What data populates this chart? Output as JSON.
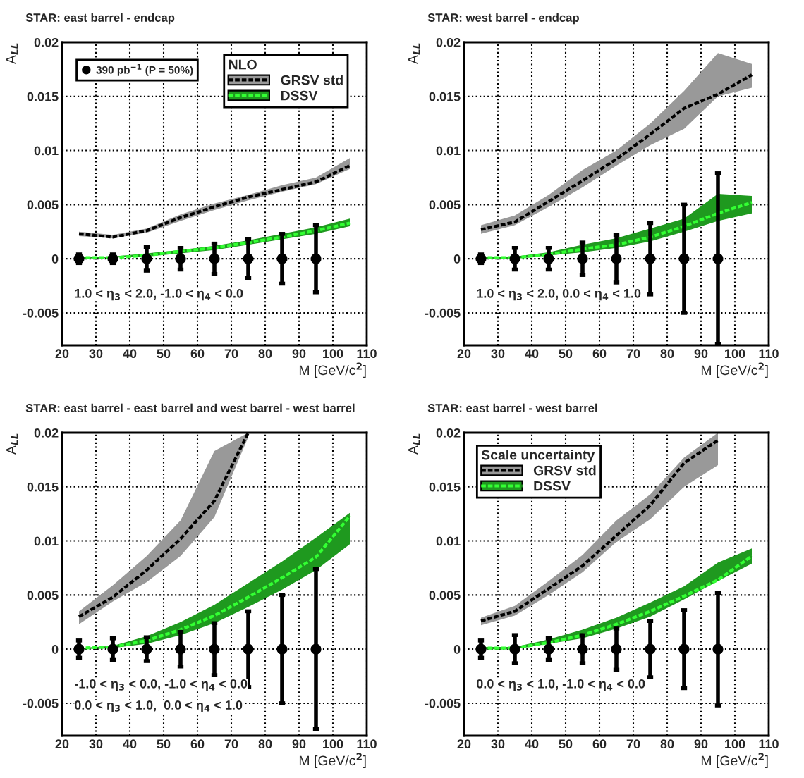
{
  "chart_data": [
    {
      "type": "line",
      "title": "STAR: east barrel - endcap",
      "xlabel": "M [GeV/c$^{2}$]",
      "ylabel": "A$_{LL}$",
      "xlim": [
        20,
        110
      ],
      "ylim": [
        -0.008,
        0.02
      ],
      "xticks": [
        20,
        30,
        40,
        50,
        60,
        70,
        80,
        90,
        100,
        110
      ],
      "yticks": [
        -0.005,
        0,
        0.005,
        0.01,
        0.015,
        0.02
      ],
      "grid": true,
      "legend": "top right",
      "legend_title": "NLO",
      "annotations": [
        "1.0 < η$_{3}$ < 2.0, -1.0 < η$_{4}$ < 0.0"
      ],
      "series": [
        {
          "name": "GRSV std",
          "color": "#000000",
          "line_style": "dashed",
          "x": [
            25,
            35,
            45,
            55,
            65,
            75,
            85,
            95,
            105
          ],
          "values": [
            0.0023,
            0.002,
            0.0026,
            0.0038,
            0.0048,
            0.0057,
            0.0064,
            0.0071,
            0.0086
          ],
          "lower": [
            0.0021,
            0.0019,
            0.0024,
            0.0035,
            0.0045,
            0.0054,
            0.0062,
            0.0069,
            0.0083
          ],
          "upper": [
            0.0025,
            0.0022,
            0.0028,
            0.0041,
            0.0051,
            0.0059,
            0.0068,
            0.0075,
            0.0093
          ]
        },
        {
          "name": "DSSV",
          "color": "#33ff33",
          "line_style": "dashed",
          "x": [
            25,
            35,
            45,
            55,
            65,
            75,
            85,
            95,
            105
          ],
          "values": [
            0.0001,
            0.0001,
            0.0003,
            0.0007,
            0.001,
            0.0015,
            0.002,
            0.0026,
            0.0033
          ],
          "lower": [
            0.0,
            0.0001,
            0.0002,
            0.0005,
            0.0008,
            0.0013,
            0.0018,
            0.0023,
            0.003
          ],
          "upper": [
            0.0002,
            0.0002,
            0.0005,
            0.0008,
            0.0012,
            0.0017,
            0.0023,
            0.0029,
            0.0037
          ]
        },
        {
          "type": "scatter",
          "name": "390 pb$^{−1}$ (P = 50%)",
          "color": "#000000",
          "marker": "circle",
          "x": [
            25,
            35,
            45,
            55,
            65,
            75,
            85,
            95
          ],
          "values": [
            0,
            0,
            0,
            0,
            0,
            0,
            0,
            0
          ],
          "errors": [
            0.0004,
            0.0004,
            0.0011,
            0.001,
            0.0014,
            0.0018,
            0.0023,
            0.0031
          ]
        }
      ]
    },
    {
      "type": "line",
      "title": "STAR: west barrel - endcap",
      "xlabel": "M [GeV/c$^{2}$]",
      "ylabel": "A$_{LL}$",
      "xlim": [
        20,
        110
      ],
      "ylim": [
        -0.008,
        0.02
      ],
      "xticks": [
        20,
        30,
        40,
        50,
        60,
        70,
        80,
        90,
        100,
        110
      ],
      "yticks": [
        -0.005,
        0,
        0.005,
        0.01,
        0.015,
        0.02
      ],
      "grid": true,
      "annotations": [
        "1.0 < η$_{3}$ < 2.0, 0.0 < η$_{4}$ < 1.0"
      ],
      "series": [
        {
          "color": "#000000",
          "line_style": "dashed",
          "x": [
            25,
            35,
            45,
            55,
            65,
            75,
            85,
            95,
            105
          ],
          "values": [
            0.0027,
            0.0034,
            0.0053,
            0.0072,
            0.0092,
            0.0115,
            0.0139,
            0.0152,
            0.017
          ],
          "lower": [
            0.0023,
            0.0031,
            0.0048,
            0.0066,
            0.0086,
            0.0105,
            0.012,
            0.015,
            0.0158
          ],
          "upper": [
            0.0031,
            0.004,
            0.0059,
            0.0082,
            0.01,
            0.0125,
            0.0155,
            0.019,
            0.018
          ]
        },
        {
          "color": "#33ff33",
          "line_style": "dashed",
          "x": [
            25,
            35,
            45,
            55,
            65,
            75,
            85,
            95,
            105
          ],
          "values": [
            0.0001,
            0.0001,
            0.0004,
            0.0009,
            0.0013,
            0.002,
            0.003,
            0.0042,
            0.0052
          ],
          "lower": [
            0.0,
            0.0,
            0.0003,
            0.0006,
            0.001,
            0.0016,
            0.0025,
            0.0035,
            0.0042
          ],
          "upper": [
            0.0002,
            0.0002,
            0.0006,
            0.0013,
            0.0019,
            0.0028,
            0.0037,
            0.006,
            0.0058
          ]
        },
        {
          "type": "scatter",
          "color": "#000000",
          "marker": "circle",
          "x": [
            25,
            35,
            45,
            55,
            65,
            75,
            85,
            95
          ],
          "values": [
            0,
            0,
            0,
            0,
            0,
            0,
            0,
            0
          ],
          "errors": [
            0.0004,
            0.001,
            0.001,
            0.0015,
            0.0022,
            0.0033,
            0.005,
            0.0079
          ]
        }
      ]
    },
    {
      "type": "line",
      "title": "STAR: east barrel - east barrel and west barrel - west barrel",
      "xlabel": "M [GeV/c$^{2}$]",
      "ylabel": "A$_{LL}$",
      "xlim": [
        20,
        110
      ],
      "ylim": [
        -0.008,
        0.02
      ],
      "xticks": [
        20,
        30,
        40,
        50,
        60,
        70,
        80,
        90,
        100,
        110
      ],
      "yticks": [
        -0.005,
        0,
        0.005,
        0.01,
        0.015,
        0.02
      ],
      "grid": true,
      "annotations": [
        "-1.0 < η$_{3}$ < 0.0, -1.0 < η$_{4}$ < 0.0",
        "0.0 < η$_{3}$ < 1.0,  0.0 < η$_{4}$ < 1.0"
      ],
      "series": [
        {
          "color": "#000000",
          "line_style": "dashed",
          "x": [
            25,
            35,
            45,
            55,
            65,
            75
          ],
          "values": [
            0.003,
            0.0048,
            0.0073,
            0.0102,
            0.0137,
            0.02
          ],
          "lower": [
            0.0023,
            0.0044,
            0.0062,
            0.0086,
            0.0122,
            0.0196
          ],
          "upper": [
            0.0035,
            0.0059,
            0.0086,
            0.0119,
            0.0183,
            0.02
          ]
        },
        {
          "color": "#33ff33",
          "line_style": "dashed",
          "x": [
            25,
            35,
            45,
            55,
            65,
            75,
            85,
            95,
            105
          ],
          "values": [
            0.0001,
            0.0002,
            0.0008,
            0.0018,
            0.0031,
            0.0048,
            0.0066,
            0.0085,
            0.0123
          ],
          "lower": [
            0.0,
            0.0001,
            0.0005,
            0.0013,
            0.0024,
            0.0039,
            0.0055,
            0.0073,
            0.0097
          ],
          "upper": [
            0.0001,
            0.0003,
            0.0012,
            0.0025,
            0.0041,
            0.0061,
            0.0081,
            0.0103,
            0.0126
          ]
        },
        {
          "type": "scatter",
          "color": "#000000",
          "marker": "circle",
          "x": [
            25,
            35,
            45,
            55,
            65,
            75,
            85,
            95
          ],
          "values": [
            0,
            0,
            0,
            0,
            0,
            0,
            0,
            0
          ],
          "errors": [
            0.0008,
            0.001,
            0.0011,
            0.0016,
            0.0024,
            0.0035,
            0.005,
            0.0074
          ]
        }
      ]
    },
    {
      "type": "line",
      "title": "STAR: east barrel - west barrel",
      "xlabel": "M [GeV/c$^{2}$]",
      "ylabel": "A$_{LL}$",
      "xlim": [
        20,
        110
      ],
      "ylim": [
        -0.008,
        0.02
      ],
      "xticks": [
        20,
        30,
        40,
        50,
        60,
        70,
        80,
        90,
        100,
        110
      ],
      "yticks": [
        -0.005,
        0,
        0.005,
        0.01,
        0.015,
        0.02
      ],
      "grid": true,
      "legend": "top left",
      "legend_title": "Scale uncertainty",
      "annotations": [
        "0.0 < η$_{3}$ < 1.0, -1.0 < η$_{4}$ < 0.0"
      ],
      "series": [
        {
          "name": "GRSV std",
          "color": "#000000",
          "line_style": "dashed",
          "x": [
            25,
            35,
            45,
            55,
            65,
            75,
            85,
            95
          ],
          "values": [
            0.0026,
            0.0035,
            0.0056,
            0.0077,
            0.0105,
            0.0133,
            0.0172,
            0.0193
          ],
          "lower": [
            0.0022,
            0.0031,
            0.005,
            0.0071,
            0.0099,
            0.012,
            0.015,
            0.017
          ],
          "upper": [
            0.0029,
            0.004,
            0.0063,
            0.0087,
            0.0119,
            0.0143,
            0.0177,
            0.02
          ]
        },
        {
          "name": "DSSV",
          "color": "#33ff33",
          "line_style": "dashed",
          "x": [
            25,
            35,
            45,
            55,
            65,
            75,
            85,
            95,
            105
          ],
          "values": [
            0.0001,
            0.0001,
            0.0006,
            0.0013,
            0.0023,
            0.0035,
            0.0049,
            0.0064,
            0.0086
          ],
          "lower": [
            0.0,
            0.0,
            0.0005,
            0.001,
            0.0019,
            0.003,
            0.0046,
            0.0063,
            0.0079
          ],
          "upper": [
            0.0002,
            0.0002,
            0.0009,
            0.0018,
            0.0029,
            0.0043,
            0.0058,
            0.008,
            0.0093
          ]
        },
        {
          "type": "scatter",
          "color": "#000000",
          "marker": "circle",
          "x": [
            25,
            35,
            45,
            55,
            65,
            75,
            85,
            95
          ],
          "values": [
            0,
            0,
            0,
            0,
            0,
            0,
            0,
            0
          ],
          "errors": [
            0.0008,
            0.0013,
            0.001,
            0.0013,
            0.0019,
            0.0026,
            0.0036,
            0.0052
          ]
        }
      ]
    }
  ]
}
